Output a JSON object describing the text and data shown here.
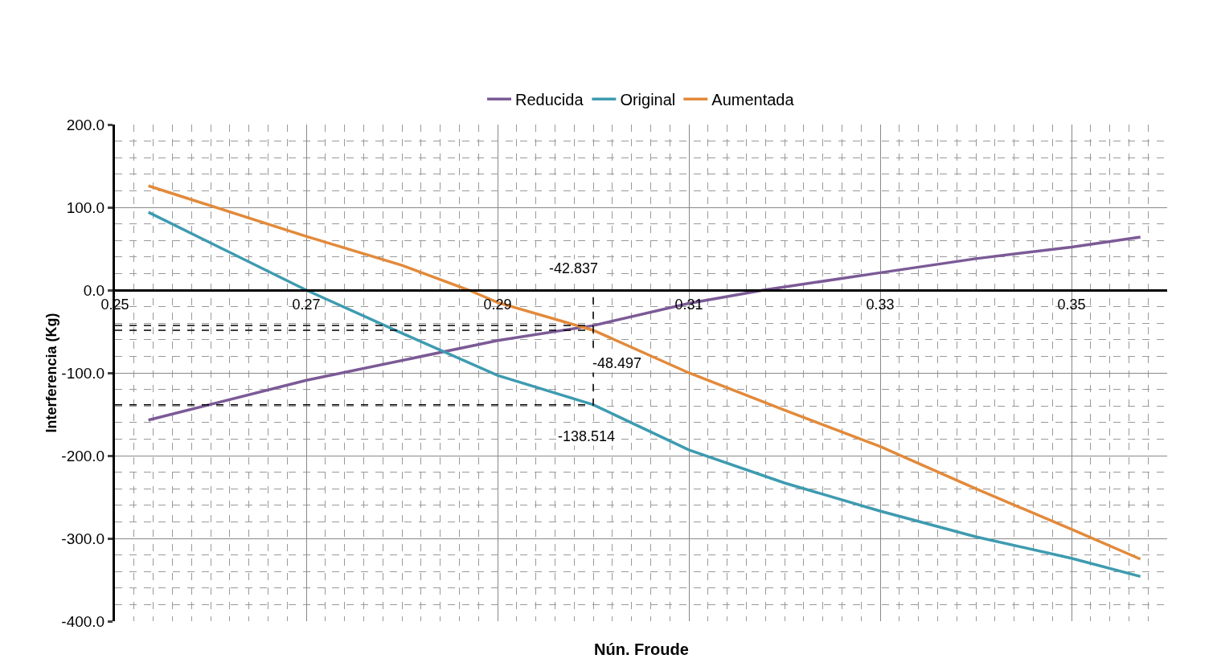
{
  "chart_data": {
    "type": "line",
    "xlabel": "Nún. Froude",
    "ylabel": "Interferencia (Kg)",
    "xlim": [
      0.25,
      0.36
    ],
    "xticks": [
      0.25,
      0.27,
      0.29,
      0.31,
      0.33,
      0.35
    ],
    "ylim": [
      -400,
      200
    ],
    "yticks": [
      {
        "value": -400,
        "label": "-400.0"
      },
      {
        "value": -300,
        "label": "-300.0"
      },
      {
        "value": -200,
        "label": "-200.0"
      },
      {
        "value": -100,
        "label": "-100.0"
      },
      {
        "value": 0,
        "label": "0.0"
      },
      {
        "value": 100,
        "label": "100.0"
      },
      {
        "value": 200,
        "label": "200.0"
      }
    ],
    "grid": true,
    "legend": "top",
    "marker": "none",
    "line_style": "solid",
    "series": [
      {
        "name": "Reducida",
        "color": "#7b5a96",
        "x": [
          0.2535,
          0.27,
          0.29,
          0.3,
          0.31,
          0.3178,
          0.33,
          0.34,
          0.35,
          0.3572
        ],
        "values": [
          -157,
          -109,
          -61,
          -42.837,
          -16,
          0,
          21,
          38,
          52,
          64
        ]
      },
      {
        "name": "Original",
        "color": "#3e9bb0",
        "x": [
          0.2535,
          0.27,
          0.28,
          0.29,
          0.3,
          0.31,
          0.32,
          0.33,
          0.34,
          0.35,
          0.3572
        ],
        "values": [
          94,
          0,
          -52,
          -103,
          -138.514,
          -193,
          -233,
          -267,
          -298,
          -324,
          -346
        ]
      },
      {
        "name": "Aumentada",
        "color": "#e28a3b",
        "x": [
          0.2535,
          0.27,
          0.28,
          0.287,
          0.29,
          0.3,
          0.31,
          0.32,
          0.33,
          0.34,
          0.35,
          0.3572
        ],
        "values": [
          126,
          65,
          30,
          0,
          -15,
          -48.497,
          -100,
          -145,
          -189,
          -240,
          -289,
          -325
        ]
      },
      {
        "type": "line",
        "color": "#000000",
        "line_style": "dashed",
        "x": [
          0.25,
          0.3
        ],
        "values": [
          -42.837,
          -42.837
        ]
      },
      {
        "type": "line",
        "color": "#000000",
        "line_style": "dashed",
        "x": [
          0.25,
          0.3
        ],
        "values": [
          -48.497,
          -48.497
        ]
      },
      {
        "type": "line",
        "color": "#000000",
        "line_style": "dashed",
        "x": [
          0.25,
          0.3,
          0.3
        ],
        "values": [
          -138.514,
          -138.514,
          0
        ]
      }
    ],
    "annotations": [
      "-42.837",
      "-48.497",
      "-138.514"
    ]
  }
}
